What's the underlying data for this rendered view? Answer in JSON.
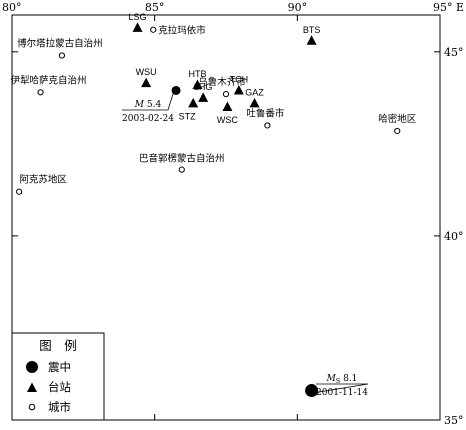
{
  "map": {
    "lon_range": [
      80,
      95
    ],
    "lat_range": [
      35,
      46
    ],
    "lon_ticks": [
      {
        "value": 80,
        "label": "80°"
      },
      {
        "value": 85,
        "label": "85°"
      },
      {
        "value": 90,
        "label": "90°"
      },
      {
        "value": 95,
        "label": "95° E"
      }
    ],
    "lat_ticks": [
      {
        "value": 45,
        "label": "45° N"
      },
      {
        "value": 40,
        "label": "40°"
      },
      {
        "value": 35,
        "label": "35°"
      }
    ]
  },
  "stations": [
    {
      "code": "LSG",
      "lon": 84.4,
      "lat": 45.65
    },
    {
      "code": "BTS",
      "lon": 90.5,
      "lat": 45.3
    },
    {
      "code": "WSU",
      "lon": 84.7,
      "lat": 44.15
    },
    {
      "code": "HTB",
      "lon": 86.5,
      "lat": 44.1
    },
    {
      "code": "TCH",
      "lon": 87.95,
      "lat": 43.95
    },
    {
      "code": "LHG",
      "lon": 86.7,
      "lat": 43.75
    },
    {
      "code": "STZ",
      "lon": 86.35,
      "lat": 43.6
    },
    {
      "code": "GAZ",
      "lon": 88.5,
      "lat": 43.6
    },
    {
      "code": "WSC",
      "lon": 87.55,
      "lat": 43.5
    }
  ],
  "cities": [
    {
      "name": "克拉玛依市",
      "lon": 84.95,
      "lat": 45.6
    },
    {
      "name": "博尔塔拉蒙古自治州",
      "lon": 81.75,
      "lat": 44.9
    },
    {
      "name": "伊犁哈萨克自治州",
      "lon": 81.0,
      "lat": 43.9
    },
    {
      "name": "乌鲁木齐市",
      "lon": 87.5,
      "lat": 43.85
    },
    {
      "name": "吐鲁番市",
      "lon": 88.95,
      "lat": 43.0
    },
    {
      "name": "哈密地区",
      "lon": 93.5,
      "lat": 42.85
    },
    {
      "name": "巴音郭楞蒙古自治州",
      "lon": 85.95,
      "lat": 41.8
    },
    {
      "name": "阿克苏地区",
      "lon": 80.25,
      "lat": 41.2
    }
  ],
  "epicenters": [
    {
      "lon": 85.75,
      "lat": 43.95,
      "mag_symbol": "M",
      "mag_subscript": "",
      "mag_value": "5.4",
      "date": "2003-02-24"
    },
    {
      "lon": 90.5,
      "lat": 35.8,
      "mag_symbol": "M",
      "mag_subscript": "S",
      "mag_value": "8.1",
      "date": "2001-11-14"
    }
  ],
  "legend": {
    "title": "图　例",
    "items": [
      {
        "symbol": "epicenter",
        "label": "震中"
      },
      {
        "symbol": "station",
        "label": "台站"
      },
      {
        "symbol": "city",
        "label": "城市"
      }
    ]
  }
}
